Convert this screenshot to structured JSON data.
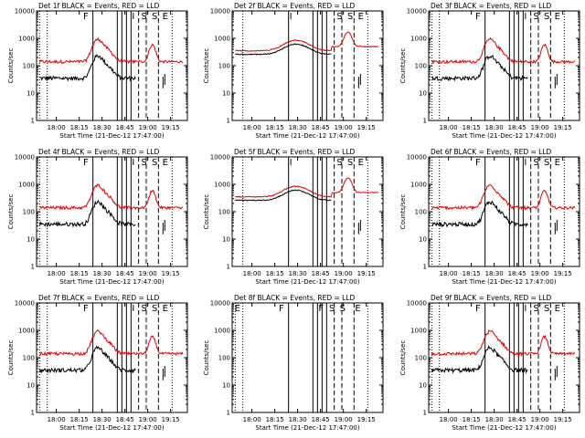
{
  "colors": {
    "events": "#000000",
    "lld": "#e00000",
    "axis": "#000000"
  },
  "chart_data": [
    {
      "type": "line",
      "title": "Det 1f BLACK = Events, RED = LLD",
      "detector": "1f",
      "flag_letters": [
        "F",
        "I",
        "S",
        "S",
        "E"
      ],
      "has_data": true,
      "lld_high": false
    },
    {
      "type": "line",
      "title": "Det 2f BLACK = Events, RED = LLD",
      "detector": "2f",
      "flag_letters": [
        "I",
        "S",
        "S",
        "E"
      ],
      "has_data": true,
      "lld_high": true
    },
    {
      "type": "line",
      "title": "Det 3f BLACK = Events, RED = LLD",
      "detector": "3f",
      "flag_letters": [
        "F",
        "I",
        "S",
        "S",
        "E"
      ],
      "has_data": true,
      "lld_high": false
    },
    {
      "type": "line",
      "title": "Det 4f BLACK = Events, RED = LLD",
      "detector": "4f",
      "flag_letters": [
        "F",
        "I",
        "S",
        "S",
        "E"
      ],
      "has_data": true,
      "lld_high": false
    },
    {
      "type": "line",
      "title": "Det 5f BLACK = Events, RED = LLD",
      "detector": "5f",
      "flag_letters": [
        "I",
        "S",
        "S",
        "E"
      ],
      "has_data": true,
      "lld_high": true
    },
    {
      "type": "line",
      "title": "Det 6f BLACK = Events, RED = LLD",
      "detector": "6f",
      "flag_letters": [
        "F",
        "I",
        "S",
        "S",
        "E"
      ],
      "has_data": true,
      "lld_high": false
    },
    {
      "type": "line",
      "title": "Det 7f BLACK = Events, RED = LLD",
      "detector": "7f",
      "flag_letters": [
        "F",
        "I",
        "S",
        "S",
        "E"
      ],
      "has_data": true,
      "lld_high": false
    },
    {
      "type": "line",
      "title": "Det 8f BLACK = Events, RED = LLD",
      "detector": "8f",
      "flag_letters": [
        "E",
        "F",
        "F",
        "S",
        "S",
        "E"
      ],
      "has_data": false,
      "lld_high": false
    },
    {
      "type": "line",
      "title": "Det 9f BLACK = Events, RED = LLD",
      "detector": "9f",
      "flag_letters": [
        "F",
        "I",
        "S",
        "S",
        "E"
      ],
      "has_data": true,
      "lld_high": false
    }
  ],
  "shared_axes": {
    "ylabel": "Counts/sec",
    "xlabel": "Start Time (21-Dec-12 17:47:00)",
    "x_tick_labels": [
      "18:00",
      "18:15",
      "18:30",
      "18:45",
      "19:00",
      "19:15"
    ],
    "y_tick_labels": [
      "1",
      "10",
      "100",
      "1000",
      "10000"
    ],
    "y_scale": "log",
    "ylim": [
      1,
      10000
    ]
  }
}
